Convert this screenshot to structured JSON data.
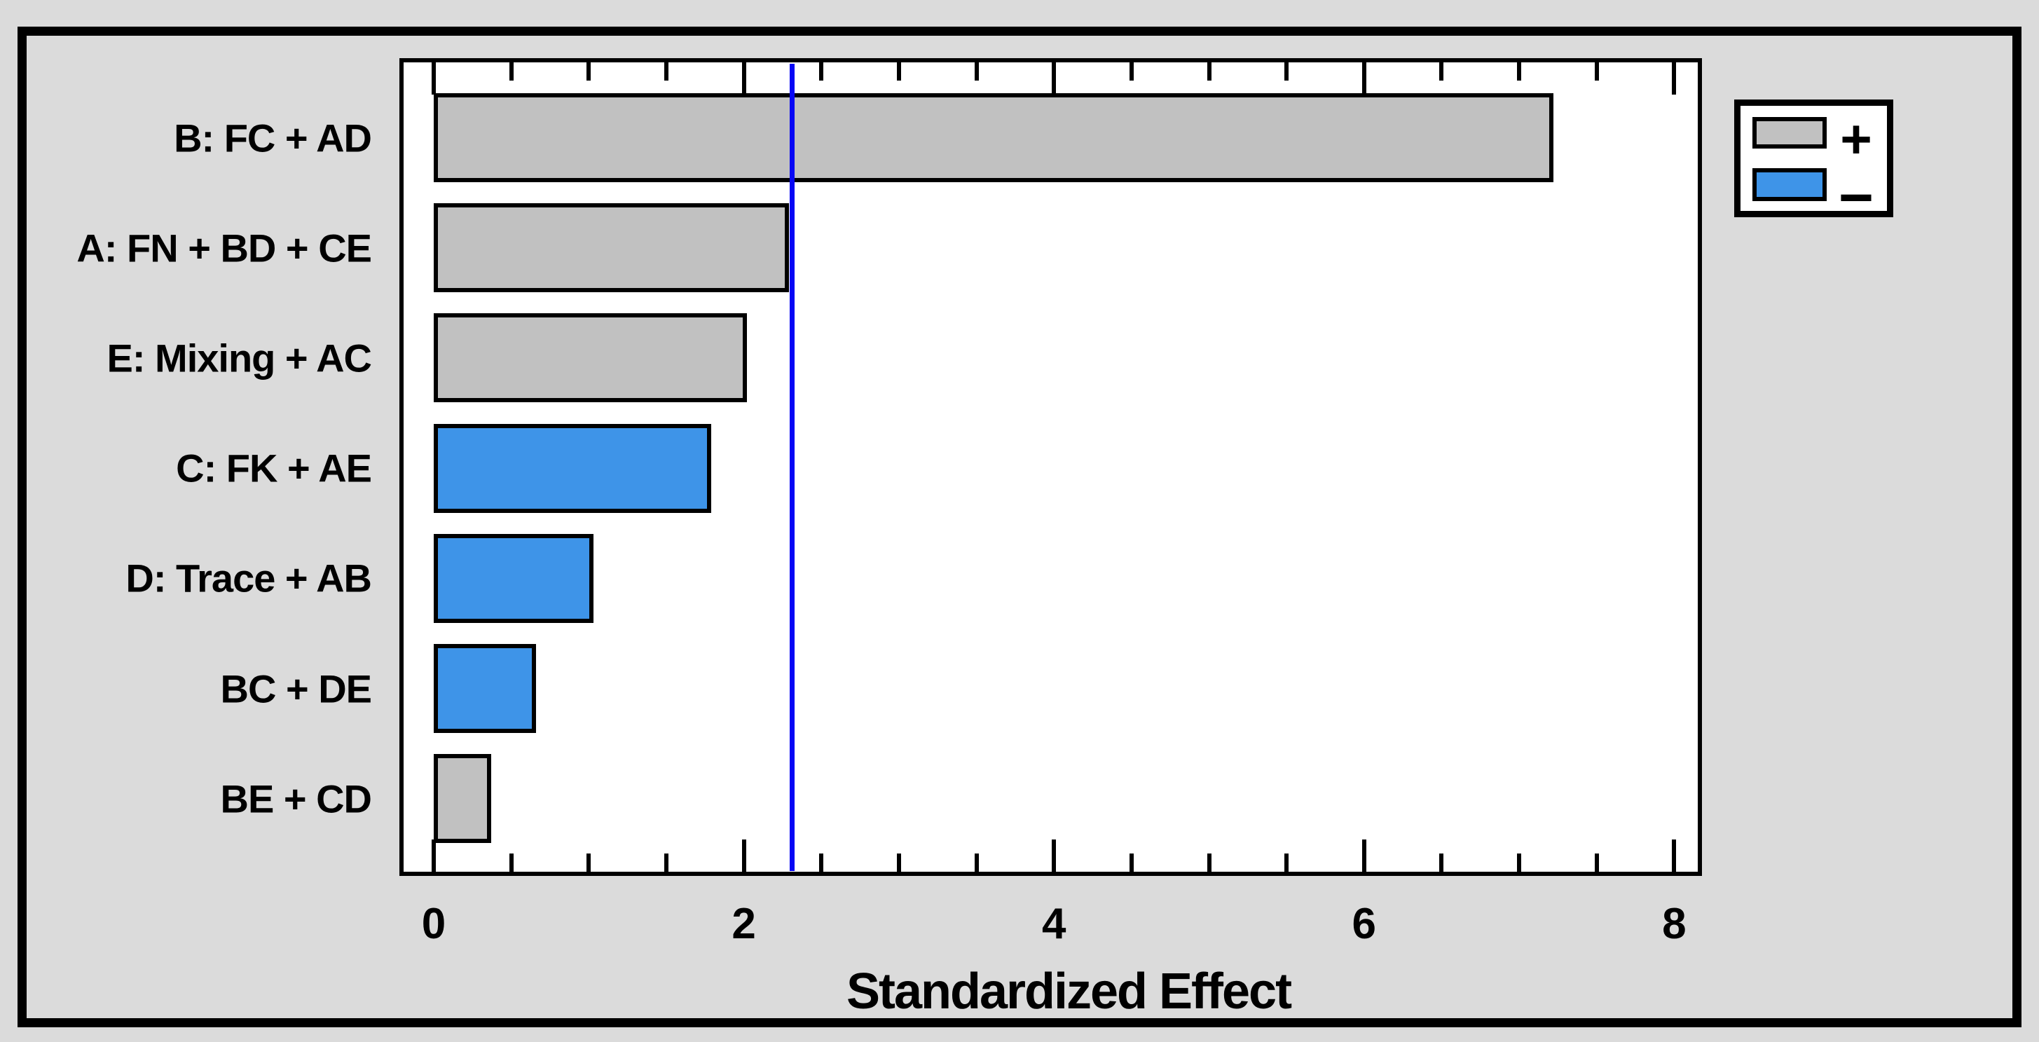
{
  "chart_data": {
    "type": "bar",
    "orientation": "horizontal",
    "title": "",
    "xlabel": "Standardized Effect",
    "categories": [
      "B: FC + AD",
      "A: FN + BD + CE",
      "E: Mixing + AC",
      "C: FK + AE",
      "D: Trace + AB",
      "BC + DE",
      "BE + CD"
    ],
    "values": [
      7.22,
      2.29,
      2.02,
      1.79,
      1.03,
      0.66,
      0.37
    ],
    "signs": [
      "+",
      "+",
      "+",
      "-",
      "-",
      "-",
      "+"
    ],
    "reference_line": 2.31,
    "x_major_ticks": [
      0,
      2,
      4,
      6,
      8
    ],
    "x_minor_tick_step": 0.5,
    "xlim": [
      0,
      8
    ],
    "grid": false,
    "legend_position": "top-right",
    "legend": [
      {
        "label": "+",
        "sign": "positive"
      },
      {
        "label": "−",
        "sign": "negative"
      }
    ],
    "colors": {
      "positive": "#C1C1C1",
      "negative": "#3E94E8",
      "reference_line": "#0707F5",
      "background": "#DBDBDB",
      "plot_background": "#FFFFFF",
      "frame": "#000000"
    }
  }
}
